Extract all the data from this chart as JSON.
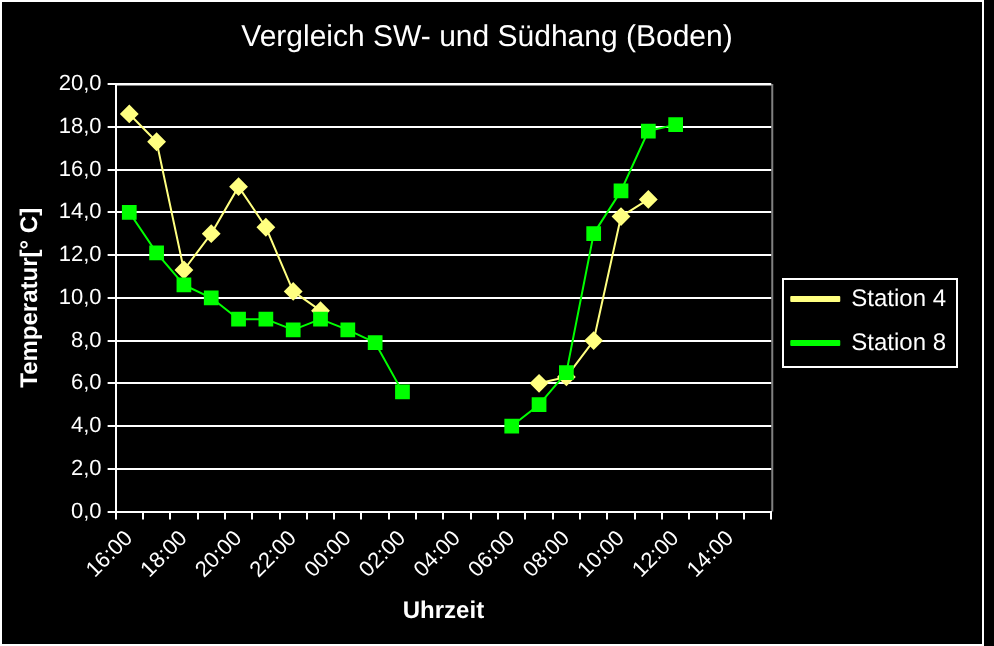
{
  "chart_data": {
    "type": "line",
    "title": "Vergleich SW- und Südhang (Boden)",
    "xlabel": "Uhrzeit",
    "ylabel": "Temperatur[° C]",
    "categories": [
      "16:00",
      null,
      "18:00",
      null,
      "20:00",
      null,
      "22:00",
      null,
      "00:00",
      null,
      "02:00",
      null,
      "04:00",
      null,
      "06:00",
      null,
      "08:00",
      null,
      "10:00",
      null,
      "12:00",
      null,
      "14:00",
      null
    ],
    "ylim": [
      0,
      20
    ],
    "yticks": [
      {
        "value": 0,
        "label": "0,0"
      },
      {
        "value": 2,
        "label": "2,0"
      },
      {
        "value": 4,
        "label": "4,0"
      },
      {
        "value": 6,
        "label": "6,0"
      },
      {
        "value": 8,
        "label": "8,0"
      },
      {
        "value": 10,
        "label": "10,0"
      },
      {
        "value": 12,
        "label": "12,0"
      },
      {
        "value": 14,
        "label": "14,0"
      },
      {
        "value": 16,
        "label": "16,0"
      },
      {
        "value": 18,
        "label": "18,0"
      },
      {
        "value": 20,
        "label": "20,0"
      }
    ],
    "grid": "y",
    "legend": "right",
    "line_style": "solid",
    "series": [
      {
        "name": "Station 4",
        "color": "#ffff80",
        "marker": "diamond",
        "values": [
          18.6,
          17.3,
          11.3,
          13.0,
          15.2,
          13.3,
          10.3,
          9.4,
          null,
          null,
          null,
          null,
          null,
          null,
          null,
          6.0,
          6.3,
          8.0,
          13.8,
          14.6,
          null,
          null,
          null,
          null
        ]
      },
      {
        "name": "Station 8",
        "color": "#00ff00",
        "marker": "square",
        "values": [
          14.0,
          12.1,
          10.6,
          10.0,
          9.0,
          9.0,
          8.5,
          9.0,
          8.5,
          7.9,
          5.6,
          null,
          null,
          null,
          4.0,
          5.0,
          6.5,
          13.0,
          15.0,
          17.8,
          18.1,
          null,
          null,
          null
        ]
      }
    ]
  }
}
